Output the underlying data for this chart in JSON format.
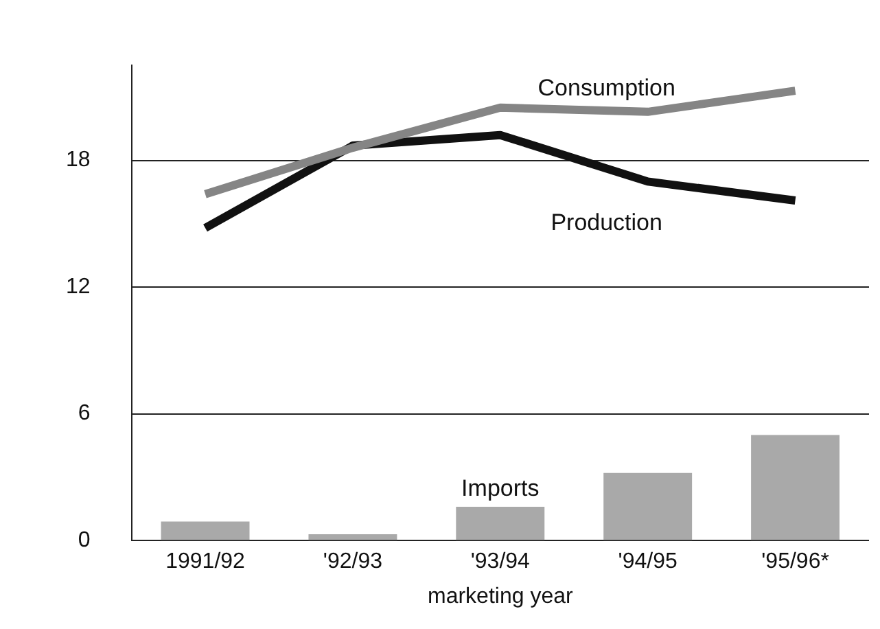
{
  "chart_data": {
    "type": "bar",
    "xlabel": "marketing year",
    "categories": [
      "1991/92",
      "'92/93",
      "'93/94",
      "'94/95",
      "'95/96*"
    ],
    "series": [
      {
        "name": "Imports",
        "color": "#a9a9a9",
        "values": [
          0.9,
          0.3,
          1.6,
          3.2,
          5.0
        ]
      },
      {
        "name": "Consumption",
        "type": "line",
        "color": "#858585",
        "values": [
          16.4,
          18.6,
          20.5,
          20.3,
          21.3
        ]
      },
      {
        "name": "Production",
        "type": "line",
        "color": "#111111",
        "values": [
          14.8,
          18.7,
          19.2,
          17.0,
          16.1
        ]
      }
    ],
    "ylim": [
      0,
      22.5
    ],
    "yticks": [
      0,
      6,
      12,
      18
    ],
    "grid": "y",
    "legend": false,
    "marker": "none",
    "line_style": "solid"
  }
}
